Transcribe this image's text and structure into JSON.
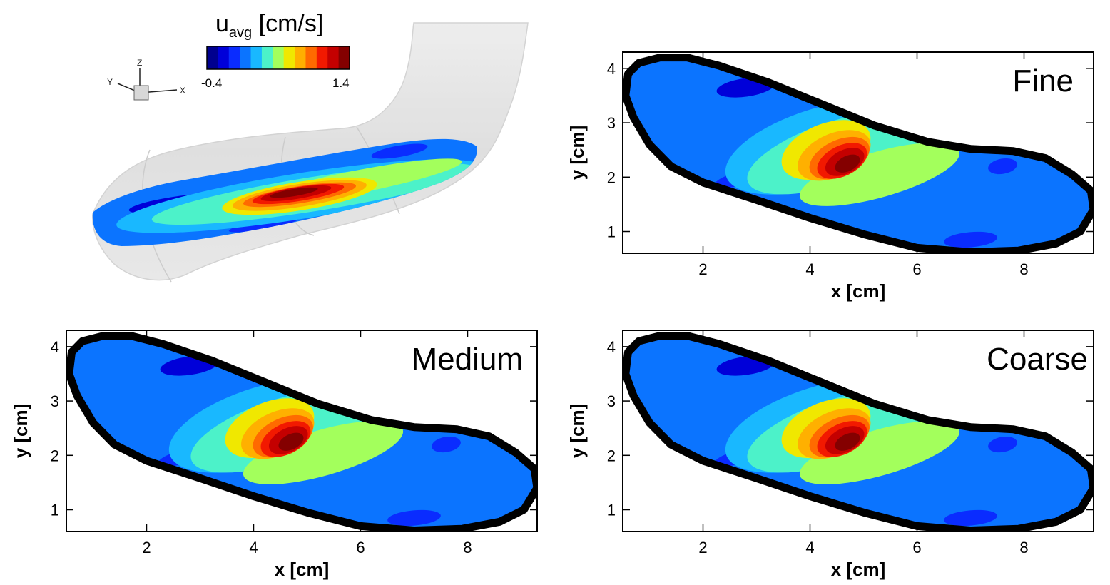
{
  "colorbar": {
    "title_main": "u",
    "title_sub": "avg",
    "title_unit": " [cm/s]",
    "min_label": "-0.4",
    "max_label": "1.4",
    "colors": [
      "#00008f",
      "#0000d9",
      "#0a2cff",
      "#0b74ff",
      "#19b8ff",
      "#4cf2c9",
      "#a3ff5c",
      "#f0e800",
      "#ffb000",
      "#ff6a00",
      "#f21900",
      "#c40000",
      "#840000"
    ]
  },
  "triad": {
    "x": "X",
    "y": "Y",
    "z": "Z"
  },
  "chart_data": [
    {
      "type": "heatmap",
      "label": "Fine",
      "xlabel": "x [cm]",
      "ylabel": "y [cm]",
      "xlim": [
        0.5,
        9.3
      ],
      "ylim": [
        0.6,
        4.3
      ],
      "xticks": [
        "2",
        "4",
        "6",
        "8"
      ],
      "yticks": [
        "1",
        "2",
        "3",
        "4"
      ],
      "colorbar_range": [
        -0.4,
        1.4
      ],
      "peak_location": [
        4.6,
        2.3
      ]
    },
    {
      "type": "heatmap",
      "label": "Medium",
      "xlabel": "x [cm]",
      "ylabel": "y [cm]",
      "xlim": [
        0.5,
        9.3
      ],
      "ylim": [
        0.6,
        4.3
      ],
      "xticks": [
        "2",
        "4",
        "6",
        "8"
      ],
      "yticks": [
        "1",
        "2",
        "3",
        "4"
      ],
      "colorbar_range": [
        -0.4,
        1.4
      ],
      "peak_location": [
        4.6,
        2.3
      ]
    },
    {
      "type": "heatmap",
      "label": "Coarse",
      "xlabel": "x [cm]",
      "ylabel": "y [cm]",
      "xlim": [
        0.5,
        9.3
      ],
      "ylim": [
        0.6,
        4.3
      ],
      "xticks": [
        "2",
        "4",
        "6",
        "8"
      ],
      "yticks": [
        "1",
        "2",
        "3",
        "4"
      ],
      "colorbar_range": [
        -0.4,
        1.4
      ],
      "peak_location": [
        4.6,
        2.3
      ]
    }
  ]
}
